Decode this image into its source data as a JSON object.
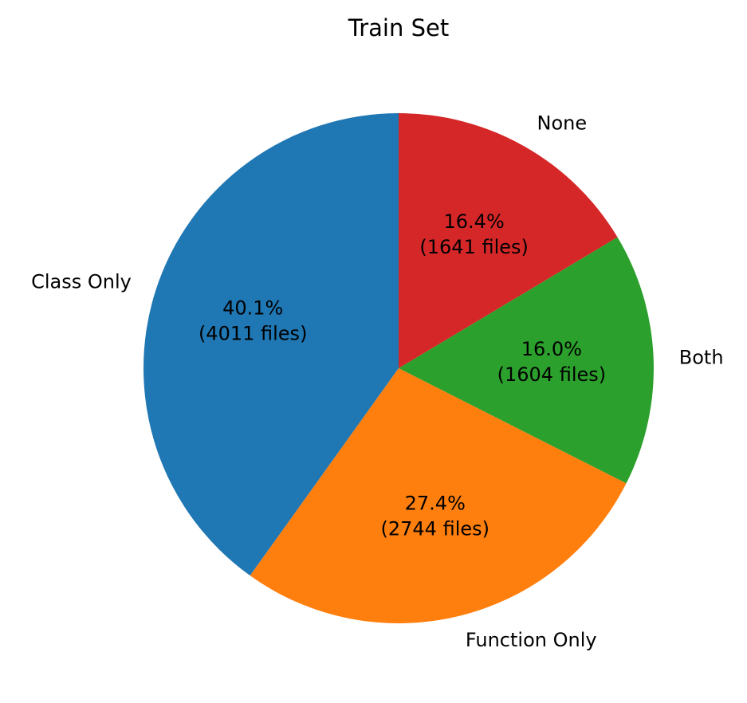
{
  "chart_data": {
    "type": "pie",
    "title": "Train Set",
    "start_angle_deg": 90,
    "direction": "counterclockwise",
    "slices": [
      {
        "label": "Class Only",
        "value": 4011,
        "percent_label": "40.1%",
        "count_label": "(4011 files)",
        "color": "#1f77b4"
      },
      {
        "label": "Function Only",
        "value": 2744,
        "percent_label": "27.4%",
        "count_label": "(2744 files)",
        "color": "#ff7f0e"
      },
      {
        "label": "Both",
        "value": 1604,
        "percent_label": "16.0%",
        "count_label": "(1604 files)",
        "color": "#2ca02c"
      },
      {
        "label": "None",
        "value": 1641,
        "percent_label": "16.4%",
        "count_label": "(1641 files)",
        "color": "#d62728"
      }
    ]
  }
}
